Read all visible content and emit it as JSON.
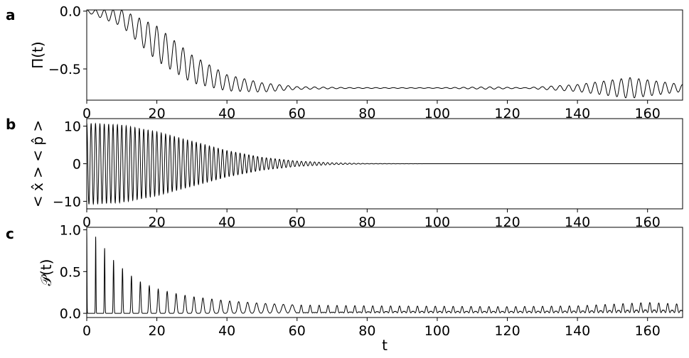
{
  "chart_data": [
    {
      "panel_label": "a",
      "type": "line",
      "ylabel": "Π(t)",
      "xlabel": "",
      "xlim": [
        0,
        170
      ],
      "ylim": [
        -0.77,
        0.01
      ],
      "xticks": [
        0,
        20,
        40,
        60,
        80,
        100,
        120,
        140,
        160
      ],
      "yticks": [
        0.0,
        -0.5
      ],
      "ytick_labels": [
        "0.0",
        "−0.5"
      ],
      "color": "#000000",
      "series": [
        {
          "description": "fast oscillation (period ~2.5) whose midline falls from 0 to about -0.67 by t≈60, envelope collapses near t≈60, small revival near t≈115 and a strong revival centered near t≈155",
          "midline": [
            [
              0,
              0
            ],
            [
              10,
              -0.06
            ],
            [
              20,
              -0.28
            ],
            [
              30,
              -0.5
            ],
            [
              40,
              -0.62
            ],
            [
              50,
              -0.66
            ],
            [
              60,
              -0.665
            ],
            [
              170,
              -0.665
            ]
          ],
          "amplitude": [
            [
              0,
              0.01
            ],
            [
              10,
              0.07
            ],
            [
              20,
              0.15
            ],
            [
              30,
              0.12
            ],
            [
              40,
              0.07
            ],
            [
              50,
              0.04
            ],
            [
              60,
              0.012
            ],
            [
              75,
              0.004
            ],
            [
              100,
              0.003
            ],
            [
              115,
              0.01
            ],
            [
              125,
              0.003
            ],
            [
              140,
              0.03
            ],
            [
              155,
              0.09
            ],
            [
              165,
              0.05
            ],
            [
              170,
              0.03
            ]
          ],
          "period": 2.5
        }
      ]
    },
    {
      "panel_label": "b",
      "type": "line",
      "ylabel": "< x̂ > < p̂ >",
      "xlabel": "",
      "xlim": [
        0,
        170
      ],
      "ylim": [
        -12,
        12
      ],
      "xticks": [
        0,
        20,
        40,
        60,
        80,
        100,
        120,
        140,
        160
      ],
      "yticks": [
        10,
        0,
        -10
      ],
      "ytick_labels": [
        "10",
        "0",
        "−10"
      ],
      "color": "#000000",
      "series": [
        {
          "description": "oscillation around 0 with decaying envelope, collapsing by t≈80",
          "midline": [
            [
              0,
              0
            ],
            [
              170,
              0
            ]
          ],
          "amplitude": [
            [
              0,
              10.8
            ],
            [
              10,
              10.3
            ],
            [
              20,
              8.5
            ],
            [
              30,
              6.0
            ],
            [
              40,
              3.5
            ],
            [
              50,
              1.7
            ],
            [
              60,
              0.7
            ],
            [
              70,
              0.25
            ],
            [
              80,
              0.06
            ],
            [
              100,
              0.0
            ],
            [
              170,
              0.0
            ]
          ],
          "period": 1.25
        }
      ]
    },
    {
      "panel_label": "c",
      "type": "line",
      "ylabel": "𝒫(t)",
      "xlabel": "t",
      "xlim": [
        0,
        170
      ],
      "ylim": [
        -0.05,
        1.03
      ],
      "xticks": [
        0,
        20,
        40,
        60,
        80,
        100,
        120,
        140,
        160
      ],
      "yticks": [
        1.0,
        0.5,
        0.0
      ],
      "ytick_labels": [
        "1.0",
        "0.5",
        "0.0"
      ],
      "color": "#000000",
      "series": [
        {
          "description": "periodic revival peaks every ~2.55 time units with decaying height, broadening into continuous fast oscillation with a revival bump near t≈160",
          "peak_period": 2.55,
          "peak_heights": [
            [
              0,
              1.0
            ],
            [
              2.5,
              0.92
            ],
            [
              5.1,
              0.78
            ],
            [
              7.6,
              0.64
            ],
            [
              10.2,
              0.54
            ],
            [
              12.7,
              0.45
            ],
            [
              15.3,
              0.38
            ],
            [
              17.8,
              0.33
            ],
            [
              20.4,
              0.29
            ],
            [
              25,
              0.24
            ],
            [
              30,
              0.2
            ],
            [
              40,
              0.15
            ],
            [
              50,
              0.12
            ],
            [
              60,
              0.1
            ],
            [
              80,
              0.09
            ],
            [
              100,
              0.085
            ],
            [
              120,
              0.08
            ],
            [
              140,
              0.09
            ],
            [
              160,
              0.13
            ],
            [
              170,
              0.11
            ]
          ],
          "peak_width": [
            [
              0,
              0.12
            ],
            [
              10,
              0.25
            ],
            [
              30,
              0.55
            ],
            [
              60,
              1.0
            ],
            [
              90,
              1.5
            ],
            [
              170,
              1.6
            ]
          ]
        }
      ]
    }
  ]
}
